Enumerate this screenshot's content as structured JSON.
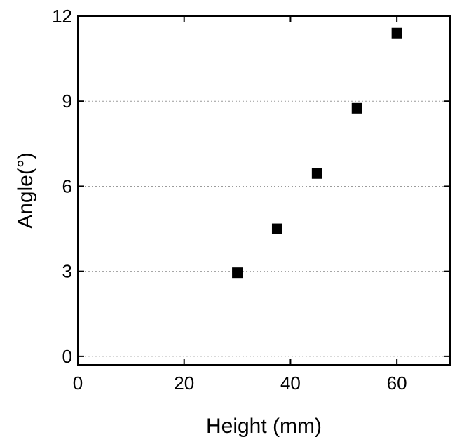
{
  "chart_data": {
    "type": "scatter",
    "xlabel": "Height (mm)",
    "ylabel": "Angle(°)",
    "xlim": [
      0,
      70
    ],
    "ylim": [
      -0.3,
      12
    ],
    "xticks": [
      0,
      20,
      40,
      60
    ],
    "yticks": [
      0,
      3,
      6,
      9,
      12
    ],
    "grid": "horizontal dotted",
    "series": [
      {
        "marker": "square",
        "color": "#000000",
        "x": [
          30,
          37.5,
          45,
          52.5,
          60
        ],
        "y": [
          2.95,
          4.5,
          6.45,
          8.75,
          11.4
        ]
      }
    ]
  }
}
